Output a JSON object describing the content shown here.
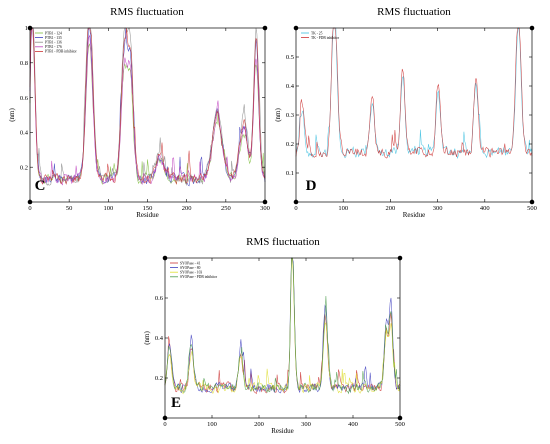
{
  "chart_data": [
    {
      "panel": "C",
      "type": "line",
      "title": "RMS fluctuation",
      "xlabel": "Residue",
      "ylabel": "(nm)",
      "xlim": [
        0,
        300
      ],
      "ylim": [
        0,
        1.0
      ],
      "xticks": [
        0,
        50,
        100,
        150,
        200,
        250,
        300
      ],
      "yticks": [
        0.2,
        0.4,
        0.6,
        0.8,
        1
      ],
      "legend_position": "top-left",
      "series": [
        {
          "name": "PTB1 - 124",
          "color": "#7fbf3f"
        },
        {
          "name": "PTB1 - 135",
          "color": "#3f3fbf"
        },
        {
          "name": "PTB1 - 136",
          "color": "#8a8a8a"
        },
        {
          "name": "PTB1 - 176",
          "color": "#bf3fbf"
        },
        {
          "name": "PTB1 - PDB inhibitor",
          "color": "#cc3333"
        }
      ],
      "features": [
        [
          2,
          0.9,
          3
        ],
        [
          75,
          0.78,
          4
        ],
        [
          120,
          0.66,
          4
        ],
        [
          128,
          0.55,
          3
        ],
        [
          165,
          0.22,
          5
        ],
        [
          238,
          0.38,
          6
        ],
        [
          272,
          0.35,
          5
        ],
        [
          288,
          0.7,
          3
        ]
      ],
      "baseline": 0.13
    },
    {
      "panel": "D",
      "type": "line",
      "title": "RMS fluctuation",
      "xlabel": "Residue",
      "ylabel": "(nm)",
      "xlim": [
        0,
        500
      ],
      "ylim": [
        0,
        0.6
      ],
      "xticks": [
        0,
        100,
        200,
        300,
        400,
        500
      ],
      "yticks": [
        0.1,
        0.2,
        0.3,
        0.4,
        0.5
      ],
      "legend_position": "top-left",
      "series": [
        {
          "name": "TK - 25",
          "color": "#40c0e0"
        },
        {
          "name": "TK - PDB inhibitor",
          "color": "#cc3333"
        }
      ],
      "features": [
        [
          12,
          0.28,
          4
        ],
        [
          80,
          0.56,
          5
        ],
        [
          160,
          0.31,
          4
        ],
        [
          225,
          0.38,
          4
        ],
        [
          300,
          0.34,
          4
        ],
        [
          380,
          0.36,
          4
        ],
        [
          470,
          0.52,
          5
        ]
      ],
      "baseline": 0.17
    },
    {
      "panel": "E",
      "type": "line",
      "title": "RMS fluctuation",
      "xlabel": "Residue",
      "ylabel": "(nm)",
      "xlim": [
        0,
        500
      ],
      "ylim": [
        0,
        0.8
      ],
      "xticks": [
        0,
        100,
        200,
        300,
        400,
        500
      ],
      "yticks": [
        0.2,
        0.4,
        0.6
      ],
      "legend_position": "top-left",
      "series": [
        {
          "name": "SYOPase - 41",
          "color": "#cc3333"
        },
        {
          "name": "SYOPase - 80",
          "color": "#3f3fbf"
        },
        {
          "name": "SYOPase - 103",
          "color": "#dede30"
        },
        {
          "name": "SYOPase - PDB inhibitor",
          "color": "#4a9a4a"
        }
      ],
      "features": [
        [
          8,
          0.3,
          4
        ],
        [
          55,
          0.3,
          4
        ],
        [
          160,
          0.28,
          4
        ],
        [
          270,
          0.78,
          3
        ],
        [
          340,
          0.42,
          4
        ],
        [
          470,
          0.36,
          4
        ],
        [
          480,
          0.42,
          3
        ]
      ],
      "baseline": 0.15
    }
  ]
}
